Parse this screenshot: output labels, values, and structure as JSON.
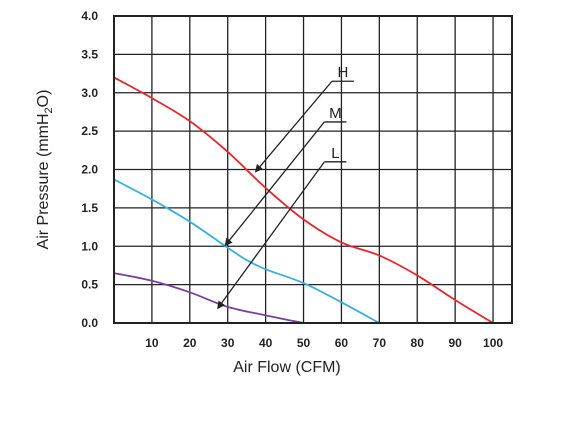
{
  "chart_data": {
    "type": "line",
    "xlabel": "Air Flow (CFM)",
    "ylabel_main": "Air Pressure (mmH",
    "ylabel_sub": "2",
    "ylabel_end": "O)",
    "xlim": [
      0,
      105
    ],
    "ylim": [
      0,
      4.0
    ],
    "x_ticks": [
      10,
      20,
      30,
      40,
      50,
      60,
      70,
      80,
      90,
      100
    ],
    "x_tick_labels": [
      "10",
      "20",
      "30",
      "40",
      "50",
      "60",
      "70",
      "80",
      "90",
      "100"
    ],
    "y_ticks": [
      0,
      0.5,
      1.0,
      1.5,
      2.0,
      2.5,
      3.0,
      3.5,
      4.0
    ],
    "y_tick_labels": [
      "0.0",
      "0.5",
      "1.0",
      "1.5",
      "2.0",
      "2.5",
      "3.0",
      "3.5",
      "4.0"
    ],
    "grid": true,
    "series": [
      {
        "name": "H",
        "color": "#e8262a",
        "points": [
          [
            0,
            3.2
          ],
          [
            10,
            2.93
          ],
          [
            20,
            2.63
          ],
          [
            30,
            2.23
          ],
          [
            40,
            1.76
          ],
          [
            50,
            1.35
          ],
          [
            60,
            1.05
          ],
          [
            70,
            0.88
          ],
          [
            80,
            0.62
          ],
          [
            90,
            0.3
          ],
          [
            100,
            0.0
          ]
        ]
      },
      {
        "name": "M",
        "color": "#3aaee2",
        "points": [
          [
            0,
            1.87
          ],
          [
            10,
            1.61
          ],
          [
            20,
            1.32
          ],
          [
            30,
            0.98
          ],
          [
            35,
            0.82
          ],
          [
            40,
            0.7
          ],
          [
            50,
            0.52
          ],
          [
            60,
            0.27
          ],
          [
            70,
            0.0
          ]
        ]
      },
      {
        "name": "L",
        "color": "#7b3fa0",
        "points": [
          [
            0,
            0.65
          ],
          [
            10,
            0.55
          ],
          [
            20,
            0.4
          ],
          [
            30,
            0.21
          ],
          [
            40,
            0.1
          ],
          [
            50,
            0.0
          ]
        ]
      }
    ],
    "annotations": [
      {
        "label": "H",
        "series": "H",
        "arrow_from": [
          57.5,
          3.15
        ],
        "arrow_to": [
          37.5,
          1.98
        ]
      },
      {
        "label": "M",
        "series": "M",
        "arrow_from": [
          55.5,
          2.62
        ],
        "arrow_to": [
          29.5,
          1.02
        ]
      },
      {
        "label": "L",
        "series": "L",
        "arrow_from": [
          55.5,
          2.1
        ],
        "arrow_to": [
          27.5,
          0.2
        ]
      }
    ]
  }
}
